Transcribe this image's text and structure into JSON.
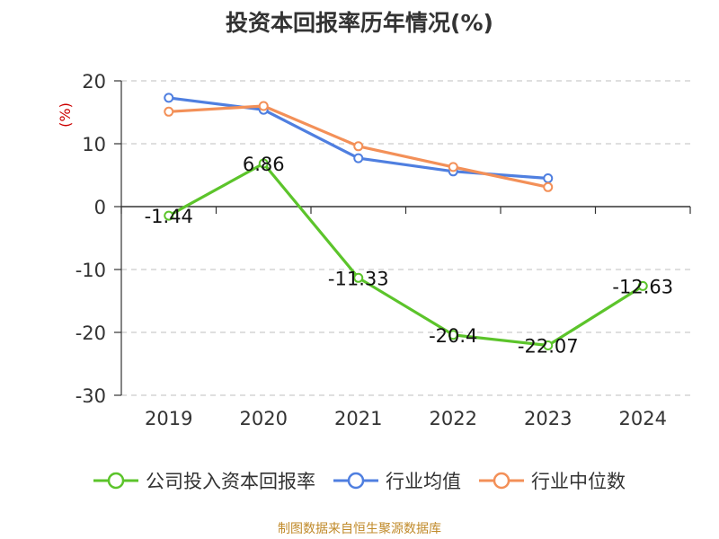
{
  "title": "投资本回报率历年情况(%)",
  "source": "制图数据来自恒生聚源数据库",
  "colors": {
    "company": "#5cc42b",
    "industry_avg": "#4f7fe0",
    "industry_median": "#f39058",
    "grid": "#cccccc",
    "axis": "#333333",
    "unit": "#cc0000"
  },
  "chart_data": {
    "type": "line",
    "title": "投资本回报率历年情况(%)",
    "ylabel": "(%)",
    "xlabel": "",
    "ylim": [
      -30,
      20
    ],
    "yticks": [
      20,
      10,
      0,
      -10,
      -20,
      -30
    ],
    "categories": [
      "2019",
      "2020",
      "2021",
      "2022",
      "2023",
      "2024"
    ],
    "grid": true,
    "legend_position": "bottom",
    "series": [
      {
        "name": "公司投入资本回报率",
        "key": "company",
        "values": [
          -1.44,
          6.86,
          -11.33,
          -20.4,
          -22.07,
          -12.63
        ],
        "labels": [
          "-1.44",
          "6.86",
          "-11.33",
          "-20.4",
          "-22.07",
          "-12.63"
        ]
      },
      {
        "name": "行业均值",
        "key": "industry_avg",
        "values": [
          17.3,
          15.4,
          7.7,
          5.6,
          4.5,
          null
        ]
      },
      {
        "name": "行业中位数",
        "key": "industry_median",
        "values": [
          15.1,
          16.0,
          9.6,
          6.3,
          3.1,
          null
        ]
      }
    ]
  }
}
